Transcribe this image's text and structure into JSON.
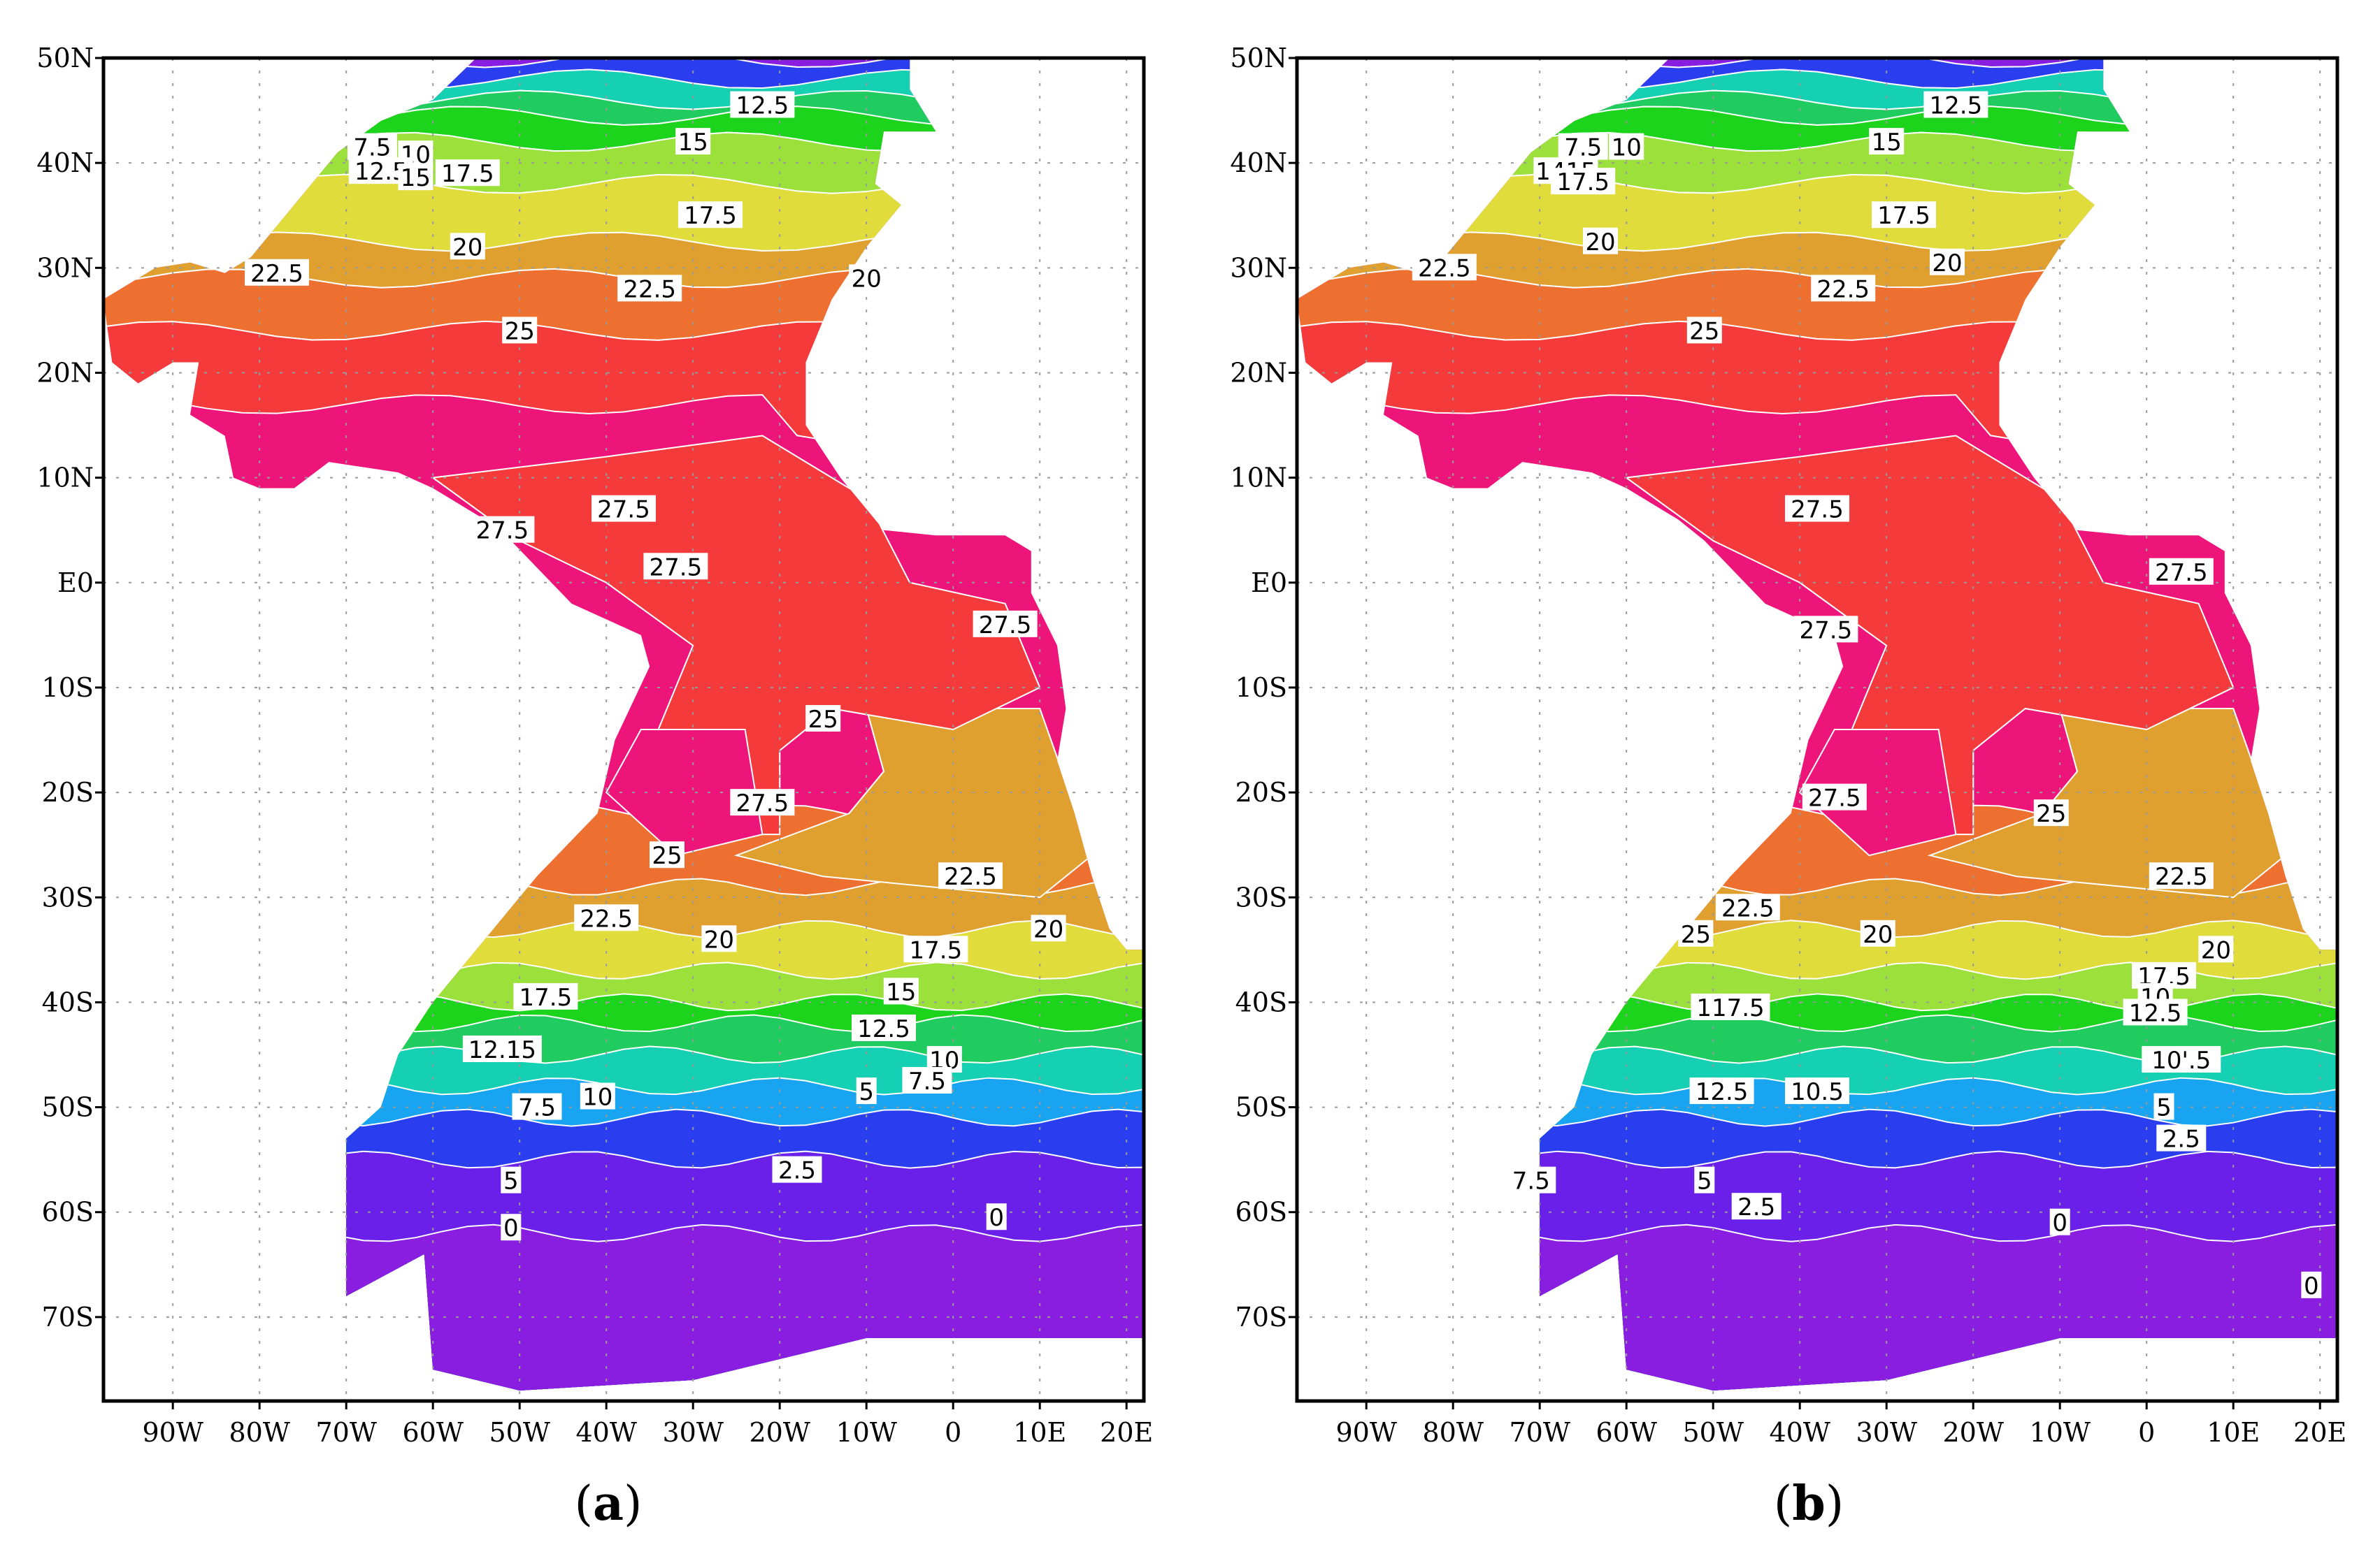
{
  "axes": {
    "lat_ticks": [
      "50N",
      "40N",
      "30N",
      "20N",
      "10N",
      "E0",
      "10S",
      "20S",
      "30S",
      "40S",
      "50S",
      "60S",
      "70S"
    ],
    "lon_ticks": [
      "90W",
      "80W",
      "70W",
      "60W",
      "50W",
      "40W",
      "30W",
      "20W",
      "10W",
      "0",
      "10E",
      "20E"
    ],
    "lat_range": [
      -78,
      50
    ],
    "lon_range": [
      -98,
      22
    ]
  },
  "colors": {
    "bands": [
      {
        "level": 0,
        "color": "#8a1ee0"
      },
      {
        "level": 2.5,
        "color": "#6a20e8"
      },
      {
        "level": 5,
        "color": "#2a3ef0"
      },
      {
        "level": 7.5,
        "color": "#18a4f0"
      },
      {
        "level": 10,
        "color": "#16d0b4"
      },
      {
        "level": 12.5,
        "color": "#20cc60"
      },
      {
        "level": 15,
        "color": "#1cd41c"
      },
      {
        "level": 17.5,
        "color": "#9ce03c"
      },
      {
        "level": 20,
        "color": "#e0dc3c"
      },
      {
        "level": 22.5,
        "color": "#e0a030"
      },
      {
        "level": 25,
        "color": "#ee7030"
      },
      {
        "level": 27.5,
        "color": "#f43a3a"
      },
      {
        "level": 28.5,
        "color": "#ee157a"
      }
    ],
    "contour_line": "#ffffff"
  },
  "panels": [
    {
      "label_open": "(",
      "letter": "a",
      "label_close": ")",
      "contour_labels": [
        {
          "text": "12.5",
          "lon": -22,
          "lat": 45.5
        },
        {
          "text": "15",
          "lon": -30,
          "lat": 42
        },
        {
          "text": "7.5",
          "lon": -67,
          "lat": 41.5
        },
        {
          "text": "10",
          "lon": -62,
          "lat": 40.8
        },
        {
          "text": "12.5",
          "lon": -66,
          "lat": 39.2
        },
        {
          "text": "15",
          "lon": -62,
          "lat": 38.6
        },
        {
          "text": "17.5",
          "lon": -56,
          "lat": 39
        },
        {
          "text": "17.5",
          "lon": -28,
          "lat": 35
        },
        {
          "text": "20",
          "lon": -56,
          "lat": 32
        },
        {
          "text": "22.5",
          "lon": -78,
          "lat": 29.5
        },
        {
          "text": "22.5",
          "lon": -35,
          "lat": 28
        },
        {
          "text": "20",
          "lon": -10,
          "lat": 29
        },
        {
          "text": "25",
          "lon": -50,
          "lat": 24
        },
        {
          "text": "27.5",
          "lon": -38,
          "lat": 7
        },
        {
          "text": "27.5",
          "lon": -52,
          "lat": 5
        },
        {
          "text": "27.5",
          "lon": -32,
          "lat": 1.5
        },
        {
          "text": "27.5",
          "lon": 6,
          "lat": -4
        },
        {
          "text": "25",
          "lon": -15,
          "lat": -13
        },
        {
          "text": "27.5",
          "lon": -22,
          "lat": -21
        },
        {
          "text": "25",
          "lon": -33,
          "lat": -26
        },
        {
          "text": "22.5",
          "lon": 2,
          "lat": -28
        },
        {
          "text": "22.5",
          "lon": -40,
          "lat": -32
        },
        {
          "text": "20",
          "lon": -27,
          "lat": -34
        },
        {
          "text": "20",
          "lon": 11,
          "lat": -33
        },
        {
          "text": "17.5",
          "lon": -2,
          "lat": -35
        },
        {
          "text": "17.5",
          "lon": -47,
          "lat": -39.5
        },
        {
          "text": "15",
          "lon": -6,
          "lat": -39
        },
        {
          "text": "12.5",
          "lon": -8,
          "lat": -42.5
        },
        {
          "text": "12.15",
          "lon": -52,
          "lat": -44.5
        },
        {
          "text": "10",
          "lon": -1,
          "lat": -45.5
        },
        {
          "text": "7.5",
          "lon": -3,
          "lat": -47.5
        },
        {
          "text": "7.5",
          "lon": -48,
          "lat": -50
        },
        {
          "text": "10",
          "lon": -41,
          "lat": -49
        },
        {
          "text": "5",
          "lon": -10,
          "lat": -48.5
        },
        {
          "text": "2.5",
          "lon": -18,
          "lat": -56
        },
        {
          "text": "5",
          "lon": -51,
          "lat": -57
        },
        {
          "text": "0",
          "lon": -51,
          "lat": -61.5
        },
        {
          "text": "0",
          "lon": 5,
          "lat": -60.5
        }
      ]
    },
    {
      "label_open": "(",
      "letter": "b",
      "label_close": ")",
      "contour_labels": [
        {
          "text": "12.5",
          "lon": -22,
          "lat": 45.5
        },
        {
          "text": "7.5",
          "lon": -65,
          "lat": 41.5
        },
        {
          "text": "10",
          "lon": -60,
          "lat": 41.5
        },
        {
          "text": "15",
          "lon": -30,
          "lat": 42
        },
        {
          "text": "1415",
          "lon": -67,
          "lat": 39.2
        },
        {
          "text": "17.5",
          "lon": -65,
          "lat": 38.2
        },
        {
          "text": "17.5",
          "lon": -28,
          "lat": 35
        },
        {
          "text": "20",
          "lon": -63,
          "lat": 32.5
        },
        {
          "text": "22.5",
          "lon": -81,
          "lat": 30
        },
        {
          "text": "20",
          "lon": -23,
          "lat": 30.5
        },
        {
          "text": "22.5",
          "lon": -35,
          "lat": 28
        },
        {
          "text": "25",
          "lon": -51,
          "lat": 24
        },
        {
          "text": "27.5",
          "lon": -38,
          "lat": 7
        },
        {
          "text": "27.5",
          "lon": 4,
          "lat": 1
        },
        {
          "text": "27.5",
          "lon": -37,
          "lat": -4.5
        },
        {
          "text": "25",
          "lon": -11,
          "lat": -22
        },
        {
          "text": "27.5",
          "lon": -36,
          "lat": -20.5
        },
        {
          "text": "22.5",
          "lon": 4,
          "lat": -28
        },
        {
          "text": "22.5",
          "lon": -46,
          "lat": -31
        },
        {
          "text": "25",
          "lon": -52,
          "lat": -33.5
        },
        {
          "text": "20",
          "lon": -31,
          "lat": -33.5
        },
        {
          "text": "20",
          "lon": 8,
          "lat": -35
        },
        {
          "text": "17.5",
          "lon": 2,
          "lat": -37.5
        },
        {
          "text": "10",
          "lon": 1,
          "lat": -39.5
        },
        {
          "text": "12.5",
          "lon": 1,
          "lat": -41
        },
        {
          "text": "117.5",
          "lon": -48,
          "lat": -40.5
        },
        {
          "text": "10'.5",
          "lon": 4,
          "lat": -45.5
        },
        {
          "text": "12.5",
          "lon": -49,
          "lat": -48.5
        },
        {
          "text": "10.5",
          "lon": -38,
          "lat": -48.5
        },
        {
          "text": "5",
          "lon": 2,
          "lat": -50
        },
        {
          "text": "2.5",
          "lon": 4,
          "lat": -53
        },
        {
          "text": "7.5",
          "lon": -71,
          "lat": -57
        },
        {
          "text": "5",
          "lon": -51,
          "lat": -57
        },
        {
          "text": "2.5",
          "lon": -45,
          "lat": -59.5
        },
        {
          "text": "0",
          "lon": -10,
          "lat": -61
        },
        {
          "text": "0",
          "lon": 19,
          "lat": -67
        }
      ]
    }
  ]
}
